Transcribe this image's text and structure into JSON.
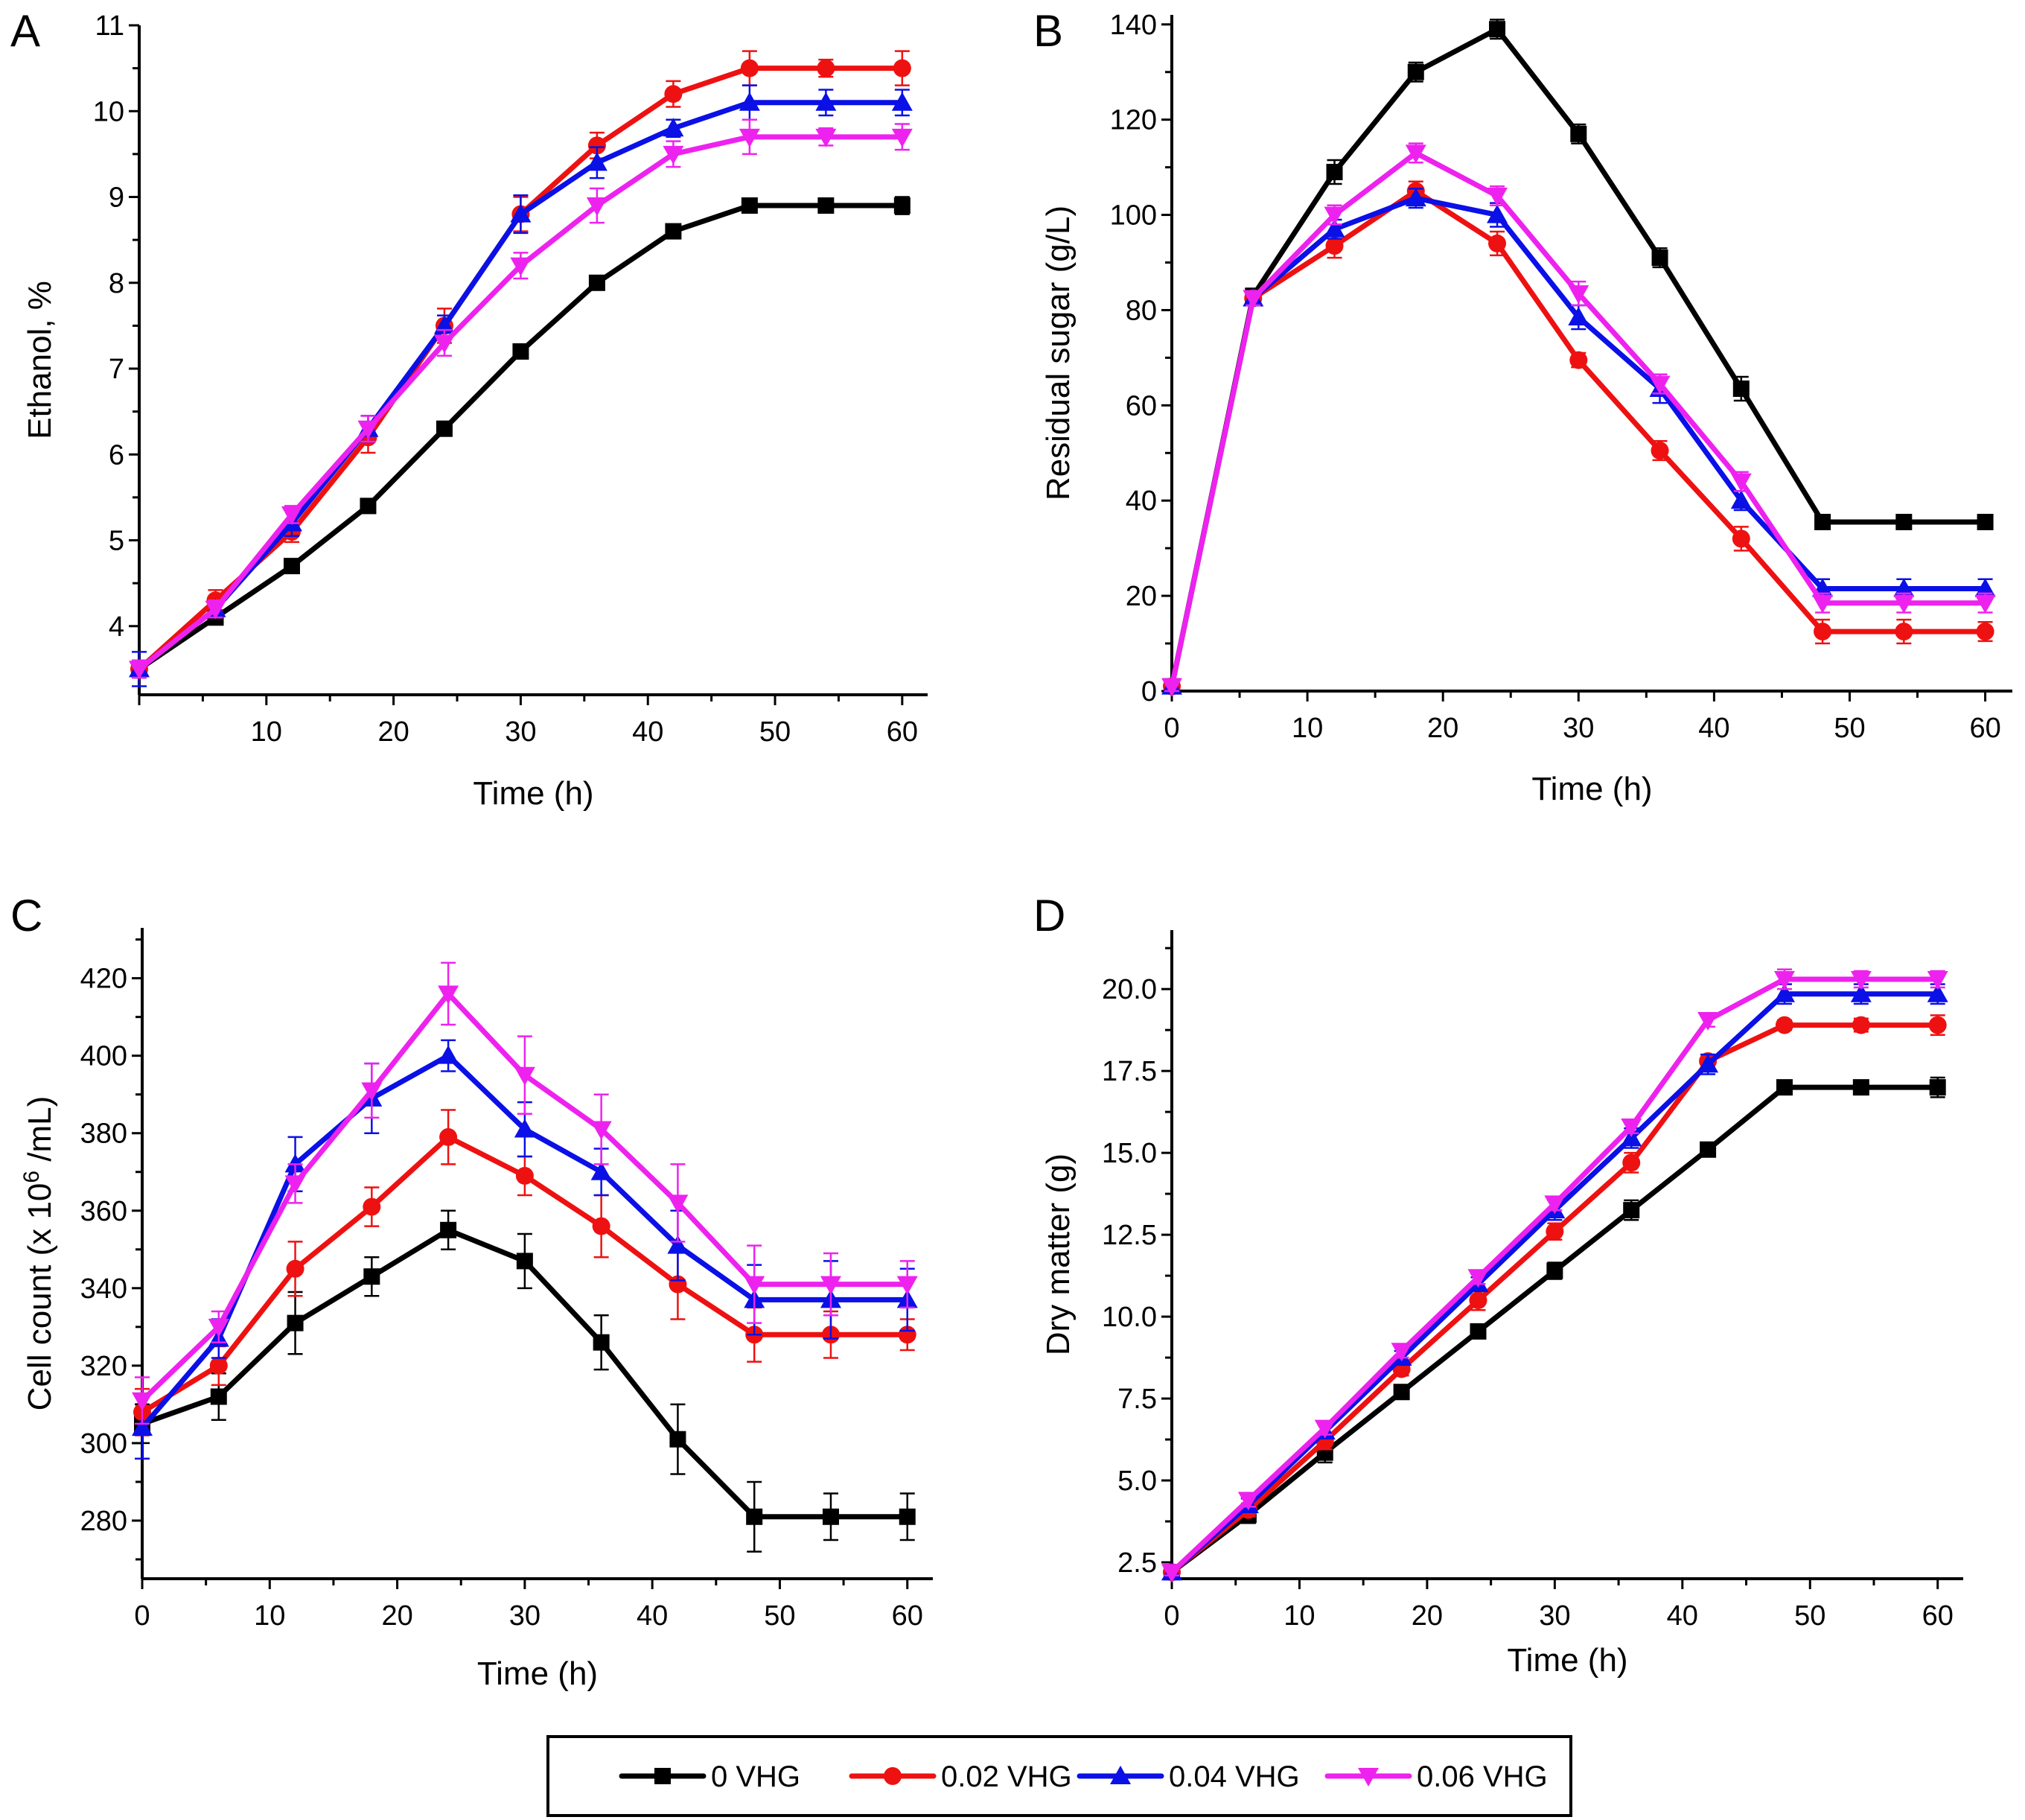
{
  "chart_data": [
    {
      "id": "A",
      "type": "line",
      "panel_label": "A",
      "title": "",
      "xlabel": "Time (h)",
      "ylabel": "Ethanol, %",
      "xlim": [
        0,
        62
      ],
      "ylim": [
        3.2,
        11
      ],
      "xticks": [
        10,
        20,
        30,
        40,
        50,
        60
      ],
      "yticks": [
        4,
        5,
        6,
        7,
        8,
        9,
        10,
        11
      ],
      "x": [
        0,
        6,
        12,
        18,
        24,
        30,
        36,
        42,
        48,
        54,
        60
      ],
      "series": [
        {
          "name": "0 VHG",
          "values": [
            3.5,
            4.1,
            4.7,
            5.4,
            6.3,
            7.2,
            8.0,
            8.6,
            8.9,
            8.9,
            8.9
          ],
          "error": [
            0.1,
            0.08,
            0.08,
            0.06,
            0.08,
            0.06,
            0.06,
            0.08,
            0.08,
            0.06,
            0.1
          ]
        },
        {
          "name": "0.02 VHG",
          "values": [
            3.5,
            4.3,
            5.1,
            6.2,
            7.5,
            8.8,
            9.6,
            10.2,
            10.5,
            10.5,
            10.5
          ],
          "error": [
            0.1,
            0.12,
            0.12,
            0.18,
            0.2,
            0.2,
            0.15,
            0.15,
            0.2,
            0.1,
            0.2
          ]
        },
        {
          "name": "0.04 VHG",
          "values": [
            3.5,
            4.2,
            5.2,
            6.3,
            7.5,
            8.8,
            9.4,
            9.8,
            10.1,
            10.1,
            10.1
          ],
          "error": [
            0.2,
            0.1,
            0.15,
            0.15,
            0.12,
            0.22,
            0.18,
            0.1,
            0.2,
            0.15,
            0.15
          ]
        },
        {
          "name": "0.06 VHG",
          "values": [
            3.5,
            4.2,
            5.3,
            6.3,
            7.3,
            8.2,
            8.9,
            9.5,
            9.7,
            9.7,
            9.7
          ],
          "error": [
            0.1,
            0.1,
            0.1,
            0.15,
            0.15,
            0.15,
            0.2,
            0.15,
            0.2,
            0.1,
            0.15
          ]
        }
      ]
    },
    {
      "id": "B",
      "type": "line",
      "panel_label": "B",
      "title": "",
      "xlabel": "Time (h)",
      "ylabel": "Residual sugar (g/L)",
      "xlim": [
        0,
        62
      ],
      "ylim": [
        0,
        142
      ],
      "xticks": [
        0,
        10,
        20,
        30,
        40,
        50,
        60
      ],
      "yticks": [
        0,
        20,
        40,
        60,
        80,
        100,
        120,
        140
      ],
      "x": [
        0,
        6,
        12,
        18,
        24,
        30,
        36,
        42,
        48,
        54,
        60
      ],
      "series": [
        {
          "name": "0 VHG",
          "values": [
            1,
            83,
            109,
            130,
            139,
            117,
            91,
            63.5,
            35.5,
            35.5,
            35.5
          ],
          "error": [
            1,
            1.5,
            2.5,
            2,
            2,
            2,
            2,
            2.5,
            1,
            1,
            1
          ]
        },
        {
          "name": "0.02 VHG",
          "values": [
            1,
            82.5,
            93.5,
            105,
            94,
            69.5,
            50.5,
            32,
            12.5,
            12.5,
            12.5
          ],
          "error": [
            1,
            1.5,
            2.5,
            2,
            2.5,
            1.5,
            2,
            2.5,
            2.5,
            2.5,
            2
          ]
        },
        {
          "name": "0.04 VHG",
          "values": [
            1,
            82.5,
            97,
            103.5,
            100,
            78.5,
            63.5,
            40,
            21.5,
            21.5,
            21.5
          ],
          "error": [
            1,
            1.5,
            2,
            2,
            2.5,
            2.5,
            3,
            2,
            2,
            2,
            2
          ]
        },
        {
          "name": "0.06 VHG",
          "values": [
            1,
            82.5,
            100,
            113,
            104,
            83.5,
            64.5,
            44,
            18.5,
            18.5,
            18.5
          ],
          "error": [
            1,
            1.5,
            2,
            2,
            2,
            2.5,
            2,
            2,
            2,
            2,
            2
          ]
        }
      ]
    },
    {
      "id": "C",
      "type": "line",
      "panel_label": "C",
      "title": "",
      "xlabel": "Time (h)",
      "ylabel_parts": [
        "Cell count (x 10",
        "6",
        " /mL)"
      ],
      "ylabel": "Cell count (x 10^6 /mL)",
      "xlim": [
        0,
        62
      ],
      "ylim": [
        265,
        433
      ],
      "xticks": [
        0,
        10,
        20,
        30,
        40,
        50,
        60
      ],
      "yticks": [
        280,
        300,
        320,
        340,
        360,
        380,
        400,
        420
      ],
      "x": [
        0,
        6,
        12,
        18,
        24,
        30,
        36,
        42,
        48,
        54,
        60
      ],
      "series": [
        {
          "name": "0 VHG",
          "values": [
            305,
            312,
            331,
            343,
            355,
            347,
            326,
            301,
            281,
            281,
            281
          ],
          "error": [
            5,
            6,
            8,
            5,
            5,
            7,
            7,
            9,
            9,
            6,
            6
          ]
        },
        {
          "name": "0.02 VHG",
          "values": [
            308,
            320,
            345,
            361,
            379,
            369,
            356,
            341,
            328,
            328,
            328
          ],
          "error": [
            6,
            5,
            7,
            5,
            7,
            5,
            8,
            9,
            7,
            6,
            4
          ]
        },
        {
          "name": "0.04 VHG",
          "values": [
            304,
            327,
            372,
            389,
            400,
            381,
            370,
            351,
            337,
            337,
            337
          ],
          "error": [
            8,
            5,
            7,
            9,
            4,
            7,
            6,
            9,
            9,
            10,
            8
          ]
        },
        {
          "name": "0.06 VHG",
          "values": [
            311,
            330,
            367,
            391,
            416,
            395,
            381,
            362,
            341,
            341,
            341
          ],
          "error": [
            6,
            4,
            5,
            7,
            8,
            10,
            9,
            10,
            10,
            8,
            6
          ]
        }
      ]
    },
    {
      "id": "D",
      "type": "line",
      "panel_label": "D",
      "title": "",
      "xlabel": "Time (h)",
      "ylabel": "Dry matter (g)",
      "xlim": [
        0,
        62
      ],
      "ylim": [
        2.0,
        21.8
      ],
      "xticks": [
        0,
        10,
        20,
        30,
        40,
        50,
        60
      ],
      "yticks": [
        2.5,
        5.0,
        7.5,
        10.0,
        12.5,
        15.0,
        17.5,
        20.0
      ],
      "ytick_labels": [
        "2.5",
        "5.0",
        "7.5",
        "10.0",
        "12.5",
        "15.0",
        "17.5",
        "20.0"
      ],
      "x": [
        0,
        6,
        12,
        18,
        24,
        30,
        36,
        42,
        48,
        54,
        60
      ],
      "series": [
        {
          "name": "0 VHG",
          "values": [
            2.2,
            3.95,
            5.85,
            7.7,
            9.55,
            11.4,
            13.25,
            15.1,
            17.0,
            17.0,
            17.0
          ],
          "error": [
            0.1,
            0.25,
            0.3,
            0.15,
            0.15,
            0.25,
            0.3,
            0.15,
            0.1,
            0.2,
            0.3
          ]
        },
        {
          "name": "0.02 VHG",
          "values": [
            2.2,
            4.1,
            6.2,
            8.4,
            10.5,
            12.6,
            14.7,
            17.8,
            18.9,
            18.9,
            18.9
          ],
          "error": [
            0.1,
            0.2,
            0.25,
            0.2,
            0.3,
            0.25,
            0.3,
            0.2,
            0.15,
            0.2,
            0.3
          ]
        },
        {
          "name": "0.04 VHG",
          "values": [
            2.2,
            4.25,
            6.5,
            8.75,
            11.0,
            13.25,
            15.45,
            17.7,
            19.85,
            19.85,
            19.85
          ],
          "error": [
            0.1,
            0.2,
            0.2,
            0.2,
            0.2,
            0.3,
            0.3,
            0.3,
            0.3,
            0.3,
            0.3
          ]
        },
        {
          "name": "0.06 VHG",
          "values": [
            2.2,
            4.4,
            6.6,
            8.95,
            11.2,
            13.45,
            15.8,
            19.05,
            20.3,
            20.3,
            20.3
          ],
          "error": [
            0.1,
            0.2,
            0.2,
            0.2,
            0.2,
            0.2,
            0.2,
            0.2,
            0.3,
            0.25,
            0.25
          ]
        }
      ]
    }
  ],
  "legend": {
    "placement": "bottom-center",
    "items": [
      {
        "label": "0 VHG",
        "color": "#000000",
        "marker": "square"
      },
      {
        "label": "0.02 VHG",
        "color": "#ee1111",
        "marker": "circle"
      },
      {
        "label": "0.04 VHG",
        "color": "#0a10e6",
        "marker": "triangle-up"
      },
      {
        "label": "0.06 VHG",
        "color": "#ee22ee",
        "marker": "triangle-down"
      }
    ]
  },
  "series_styles": [
    {
      "name": "0 VHG",
      "color": "#000000",
      "marker": "square"
    },
    {
      "name": "0.02 VHG",
      "color": "#ee1111",
      "marker": "circle"
    },
    {
      "name": "0.04 VHG",
      "color": "#0a10e6",
      "marker": "triangle-up"
    },
    {
      "name": "0.06 VHG",
      "color": "#ee22ee",
      "marker": "triangle-down"
    }
  ]
}
